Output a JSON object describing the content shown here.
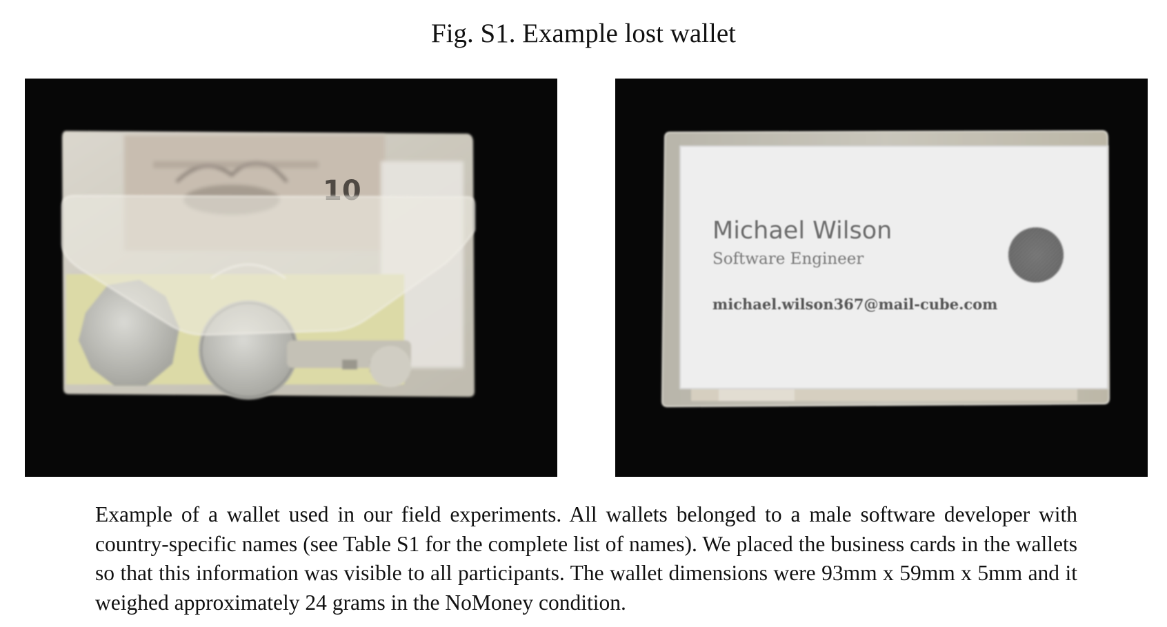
{
  "figure": {
    "title": "Fig. S1. Example lost wallet",
    "caption": "Example of a wallet used in our field experiments. All wallets belonged to a male software developer with country-specific names (see Table S1 for the complete list of names). We placed the business cards in the wallets so that this information was visible to all participants. The wallet dimensions were 93mm x 59mm x 5mm and it weighed approximately 24 grams in the NoMoney condition."
  },
  "photo_left": {
    "banknote_denomination": "10"
  },
  "photo_right": {
    "business_card": {
      "name": "Michael Wilson",
      "job_title": "Software Engineer",
      "email": "michael.wilson367@mail-cube.com"
    }
  },
  "colors": {
    "photo_background": "#070707",
    "wallet_plastic": "#d8d4c8",
    "card_white": "#eeeeee",
    "card_text": "#6a6a6a"
  }
}
